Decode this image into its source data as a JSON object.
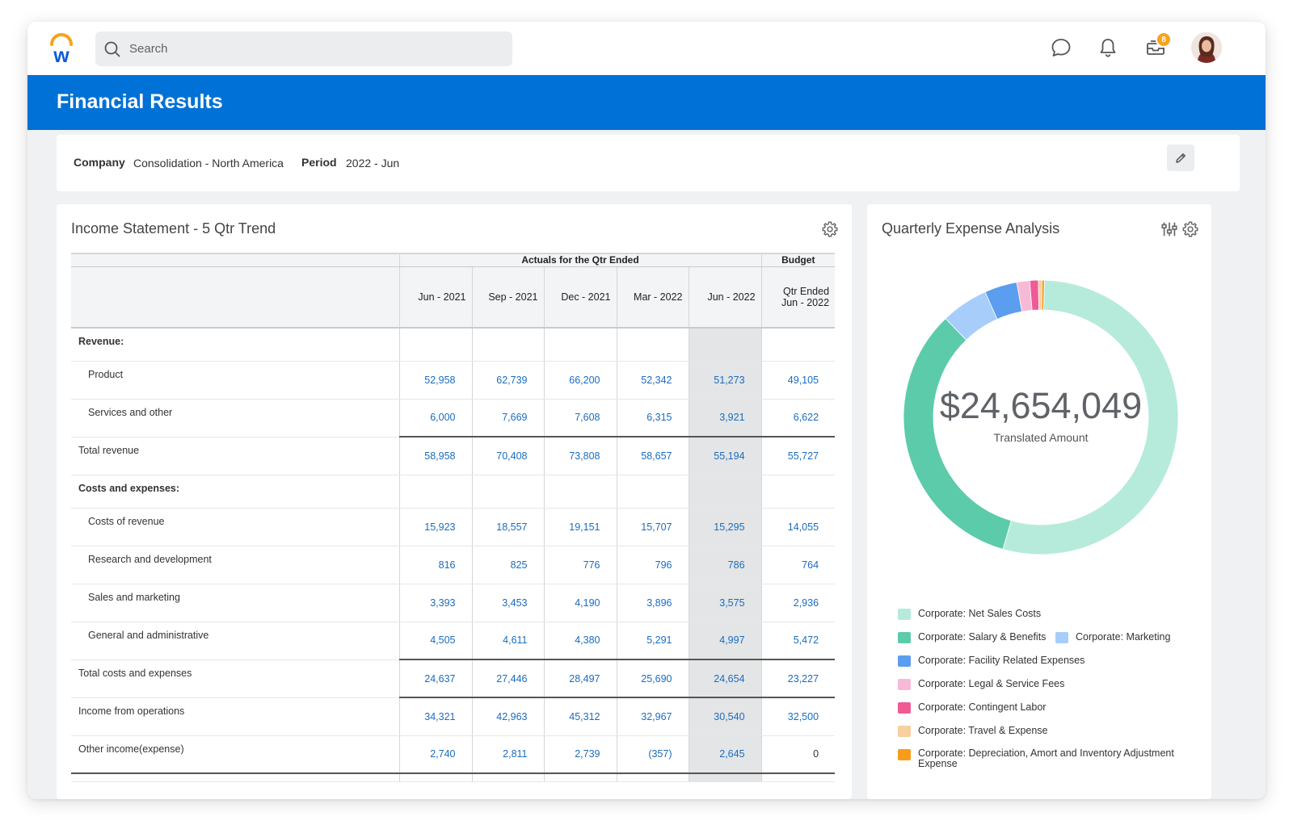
{
  "topbar": {
    "search_placeholder": "Search",
    "inbox_badge": "8",
    "brand_orange": "#f7a21b",
    "brand_blue": "#0b5cd6"
  },
  "header": {
    "title": "Financial Results",
    "color": "#0071d6"
  },
  "filters": {
    "company_label": "Company",
    "company_value": "Consolidation - North America",
    "period_label": "Period",
    "period_value": "2022 - Jun"
  },
  "income": {
    "title": "Income Statement - 5 Qtr Trend",
    "group_actuals": "Actuals for the Qtr Ended",
    "group_budget": "Budget",
    "columns": [
      "Jun - 2021",
      "Sep - 2021",
      "Dec - 2021",
      "Mar - 2022",
      "Jun - 2022",
      "Qtr Ended Jun - 2022"
    ],
    "rows": [
      {
        "label": "Revenue:",
        "values": []
      },
      {
        "label": "Product",
        "values": [
          "52,958",
          "62,739",
          "66,200",
          "52,342",
          "51,273",
          "49,105"
        ]
      },
      {
        "label": "Services and other",
        "values": [
          "6,000",
          "7,669",
          "7,608",
          "6,315",
          "3,921",
          "6,622"
        ]
      },
      {
        "label": "Total revenue",
        "values": [
          "58,958",
          "70,408",
          "73,808",
          "58,657",
          "55,194",
          "55,727"
        ]
      },
      {
        "label": "Costs and expenses:",
        "values": []
      },
      {
        "label": "Costs of revenue",
        "values": [
          "15,923",
          "18,557",
          "19,151",
          "15,707",
          "15,295",
          "14,055"
        ]
      },
      {
        "label": "Research and development",
        "values": [
          "816",
          "825",
          "776",
          "796",
          "786",
          "764"
        ]
      },
      {
        "label": "Sales and marketing",
        "values": [
          "3,393",
          "3,453",
          "4,190",
          "3,896",
          "3,575",
          "2,936"
        ]
      },
      {
        "label": "General and administrative",
        "values": [
          "4,505",
          "4,611",
          "4,380",
          "5,291",
          "4,997",
          "5,472"
        ]
      },
      {
        "label": "Total costs and expenses",
        "values": [
          "24,637",
          "27,446",
          "28,497",
          "25,690",
          "24,654",
          "23,227"
        ]
      },
      {
        "label": "Income from operations",
        "values": [
          "34,321",
          "42,963",
          "45,312",
          "32,967",
          "30,540",
          "32,500"
        ]
      },
      {
        "label": "Other income(expense)",
        "values": [
          "2,740",
          "2,811",
          "2,739",
          "(357)",
          "2,645",
          "0"
        ]
      }
    ]
  },
  "expense": {
    "title": "Quarterly Expense Analysis",
    "total": "$24,654,049",
    "total_label": "Translated Amount",
    "legend": [
      {
        "label": "Corporate: Net Sales Costs",
        "color": "#b6ebdc"
      },
      {
        "label": "Corporate: Salary & Benefits",
        "color": "#5ccba9"
      },
      {
        "label": "Corporate: Marketing",
        "color": "#a7cdfa"
      },
      {
        "label": "Corporate: Facility Related Expenses",
        "color": "#5b9ef0"
      },
      {
        "label": "Corporate: Legal & Service Fees",
        "color": "#f7bad6"
      },
      {
        "label": "Corporate: Contingent Labor",
        "color": "#f05b95"
      },
      {
        "label": "Corporate: Travel & Expense",
        "color": "#f9cf9d"
      },
      {
        "label": "Corporate: Depreciation, Amort and Inventory Adjustment Expense",
        "color": "#f89c1c"
      }
    ]
  },
  "chart_data": {
    "type": "pie",
    "title": "Quarterly Expense Analysis",
    "center_value": "$24,654,049",
    "center_label": "Translated Amount",
    "categories": [
      "Corporate: Net Sales Costs",
      "Corporate: Salary & Benefits",
      "Corporate: Marketing",
      "Corporate: Facility Related Expenses",
      "Corporate: Legal & Service Fees",
      "Corporate: Contingent Labor",
      "Corporate: Travel & Expense",
      "Corporate: Depreciation, Amort and Inventory Adjustment Expense"
    ],
    "values": [
      53.5,
      33.0,
      5.5,
      3.8,
      1.5,
      1.0,
      0.4,
      0.3
    ],
    "unit": "percent of total (estimated)",
    "legend": "bottom"
  }
}
